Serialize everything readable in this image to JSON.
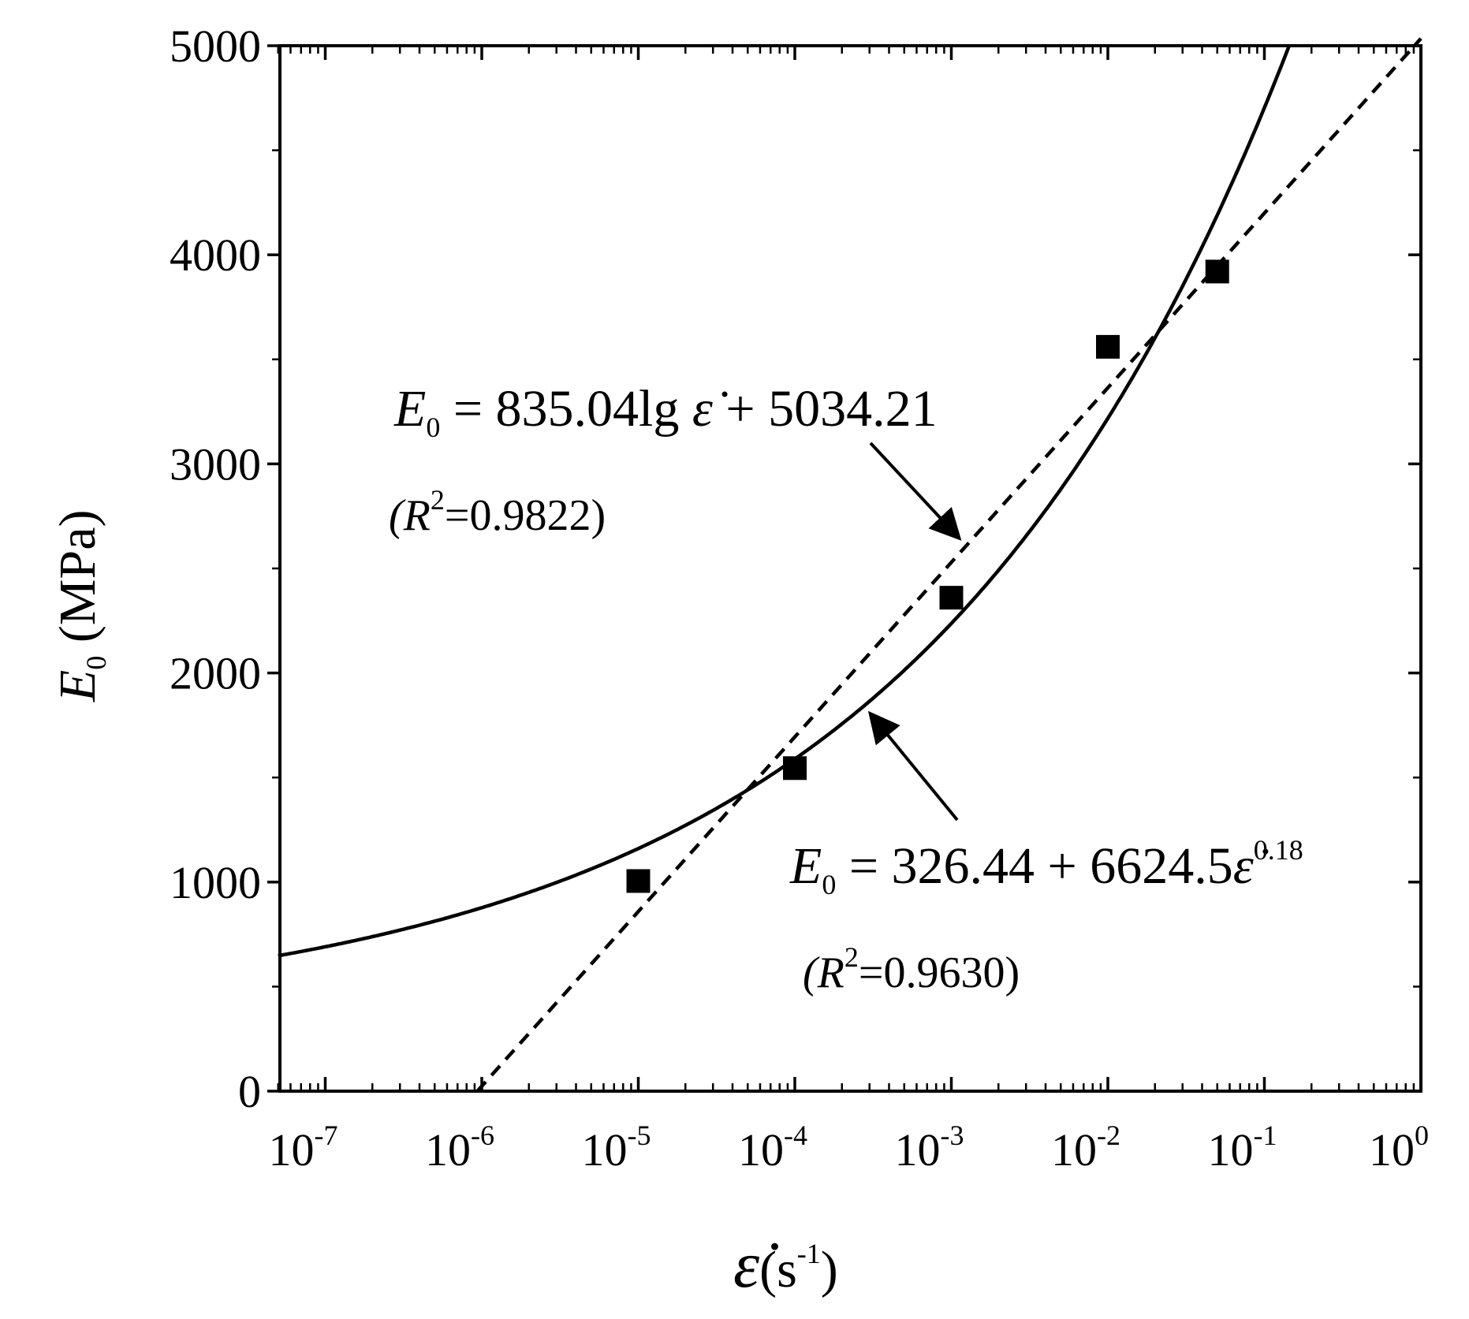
{
  "chart_data": {
    "type": "scatter",
    "x_scale": "log",
    "xlim": [
      5e-08,
      1
    ],
    "ylim": [
      0,
      5000
    ],
    "y_ticks": [
      0,
      1000,
      2000,
      3000,
      4000,
      5000
    ],
    "x_ticks": [
      {
        "base": "10",
        "exp": "-7",
        "value": 1e-07
      },
      {
        "base": "10",
        "exp": "-6",
        "value": 1e-06
      },
      {
        "base": "10",
        "exp": "-5",
        "value": 1e-05
      },
      {
        "base": "10",
        "exp": "-4",
        "value": 0.0001
      },
      {
        "base": "10",
        "exp": "-3",
        "value": 0.001
      },
      {
        "base": "10",
        "exp": "-2",
        "value": 0.01
      },
      {
        "base": "10",
        "exp": "-1",
        "value": 0.1
      },
      {
        "base": "10",
        "exp": "0",
        "value": 1
      }
    ],
    "y_minor_step": 500,
    "xlabel": {
      "symbol": "ε̇",
      "paren_open": "(s",
      "sup": "-1",
      "paren_close": ")"
    },
    "ylabel": {
      "symbol": "E",
      "sub": "0",
      "unit": " (MPa)"
    },
    "grid": false,
    "series": [
      {
        "kind": "points",
        "marker": "square",
        "x": [
          1e-05,
          0.0001,
          0.001,
          0.01,
          0.05
        ],
        "y": [
          1005,
          1545,
          2360,
          3560,
          3920
        ]
      },
      {
        "kind": "fit",
        "style": "dashed",
        "formula": "E0 = 835.04 lg(strain rate) + 5034.21",
        "a": 835.04,
        "b": 5034.21
      },
      {
        "kind": "fit",
        "style": "solid",
        "formula": "E0 = 326.44 + 6624.5 strain rate^0.18",
        "a": 326.44,
        "c": 6624.5,
        "n": 0.18
      }
    ],
    "annotations": {
      "log_fit": {
        "E": "E",
        "sub": "0",
        "rhs": " = 835.04lg ",
        "rate": "ε̇",
        "tail": " + 5034.21",
        "r2_open": "(R",
        "r2_sup": "2",
        "r2_close": "=0.9822)"
      },
      "power_fit": {
        "E": "E",
        "sub": "0",
        "rhs": " = 326.44 + 6624.5",
        "rate": "ε̇",
        "pow": "0.18",
        "r2_open": "(R",
        "r2_sup": "2",
        "r2_close": "=0.9630)"
      }
    }
  }
}
